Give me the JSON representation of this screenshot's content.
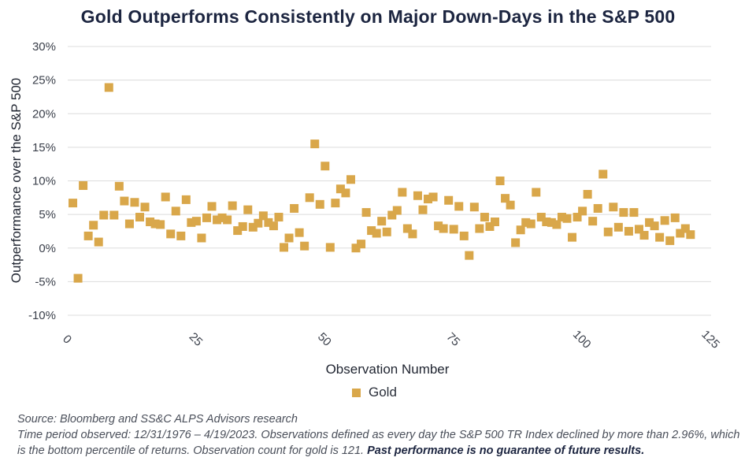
{
  "title": "Gold Outperforms Consistently on Major Down-Days in the S&P 500",
  "legend_label": "Gold",
  "source_line": "Source: Bloomberg and SS&C ALPS Advisors research",
  "note_text": "Time period observed: 12/31/1976 – 4/19/2023. Observations defined as every day the S&P 500 TR Index declined by more than 2.96%, which is the bottom percentile of returns. Observation count for gold is 121.",
  "note_bold": "Past performance is no guarantee of future results.",
  "colors": {
    "marker": "#d9a74a",
    "title": "#1c2540",
    "grid": "#dcdcdc"
  },
  "chart_data": {
    "type": "scatter",
    "title": "Gold Outperforms Consistently on Major Down-Days in the S&P 500",
    "xlabel": "Observation Number",
    "ylabel": "Outperformance over the S&P 500",
    "xlim": [
      0,
      125
    ],
    "ylim": [
      -10,
      30
    ],
    "x_ticks": [
      0,
      25,
      50,
      75,
      100,
      125
    ],
    "y_ticks": [
      -10,
      -5,
      0,
      5,
      10,
      15,
      20,
      25,
      30
    ],
    "y_tick_labels": [
      "-10%",
      "-5%",
      "0%",
      "5%",
      "10%",
      "15%",
      "20%",
      "25%",
      "30%"
    ],
    "legend": "bottom-center",
    "grid": true,
    "series": [
      {
        "name": "Gold",
        "x": [
          1,
          2,
          3,
          4,
          5,
          6,
          7,
          8,
          9,
          10,
          11,
          12,
          13,
          14,
          15,
          16,
          17,
          18,
          19,
          20,
          21,
          22,
          23,
          24,
          25,
          26,
          27,
          28,
          29,
          30,
          31,
          32,
          33,
          34,
          35,
          36,
          37,
          38,
          39,
          40,
          41,
          42,
          43,
          44,
          45,
          46,
          47,
          48,
          49,
          50,
          51,
          52,
          53,
          54,
          55,
          56,
          57,
          58,
          59,
          60,
          61,
          62,
          63,
          64,
          65,
          66,
          67,
          68,
          69,
          70,
          71,
          72,
          73,
          74,
          75,
          76,
          77,
          78,
          79,
          80,
          81,
          82,
          83,
          84,
          85,
          86,
          87,
          88,
          89,
          90,
          91,
          92,
          93,
          94,
          95,
          96,
          97,
          98,
          99,
          100,
          101,
          102,
          103,
          104,
          105,
          106,
          107,
          108,
          109,
          110,
          111,
          112,
          113,
          114,
          115,
          116,
          117,
          118,
          119,
          120,
          121
        ],
        "y": [
          6.7,
          -4.5,
          9.3,
          1.8,
          3.4,
          0.9,
          4.9,
          23.9,
          4.9,
          9.2,
          7.0,
          3.6,
          6.8,
          4.6,
          6.1,
          3.9,
          3.6,
          3.5,
          7.6,
          2.1,
          5.5,
          1.8,
          7.2,
          3.8,
          4.0,
          1.5,
          4.5,
          6.2,
          4.2,
          4.5,
          4.2,
          6.3,
          2.6,
          3.2,
          5.7,
          3.1,
          3.7,
          4.8,
          3.8,
          3.3,
          4.6,
          0.1,
          1.5,
          5.9,
          2.3,
          0.3,
          7.5,
          15.5,
          6.5,
          12.2,
          0.1,
          6.7,
          8.8,
          8.2,
          10.2,
          0.0,
          0.6,
          5.3,
          2.6,
          2.2,
          4.0,
          2.4,
          4.9,
          5.6,
          8.3,
          2.9,
          2.1,
          7.8,
          5.7,
          7.3,
          7.6,
          3.3,
          2.9,
          7.1,
          2.8,
          6.2,
          1.8,
          -1.1,
          6.1,
          2.9,
          4.6,
          3.2,
          3.9,
          10.0,
          7.4,
          6.4,
          0.8,
          2.7,
          3.8,
          3.6,
          8.3,
          4.6,
          3.9,
          3.8,
          3.5,
          4.6,
          4.4,
          1.6,
          4.6,
          5.5,
          8.0,
          4.0,
          5.9,
          11.0,
          2.4,
          6.1,
          3.1,
          5.3,
          2.5,
          5.3,
          2.8,
          1.9,
          3.8,
          3.3,
          1.6,
          4.1,
          1.1,
          4.5,
          2.2,
          2.9,
          2.0
        ]
      }
    ]
  }
}
